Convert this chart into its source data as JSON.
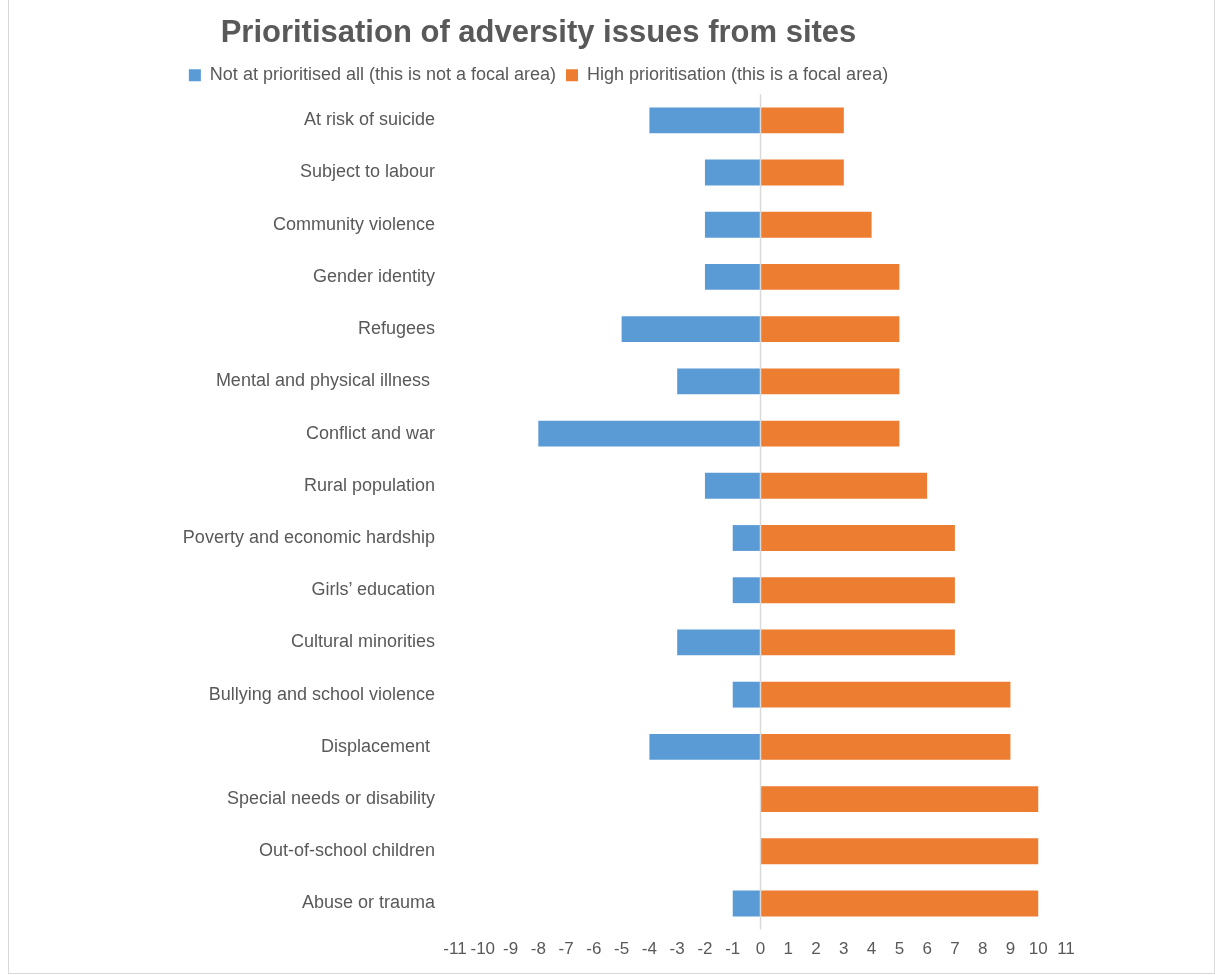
{
  "chart_data": {
    "type": "bar",
    "orientation": "horizontal",
    "stacked": true,
    "title": "Prioritisation of adversity issues from sites",
    "categories": [
      "At risk of suicide",
      "Subject to labour",
      "Community violence",
      "Gender identity",
      "Refugees",
      "Mental and physical illness ",
      "Conflict and war",
      "Rural population",
      "Poverty and economic hardship",
      "Girls’ education",
      "Cultural minorities",
      "Bullying and school violence",
      "Displacement ",
      "Special needs or disability",
      "Out-of-school children",
      "Abuse or trauma"
    ],
    "series": [
      {
        "name": "Not at prioritised all (this is not a focal area)",
        "color": "#5b9bd5",
        "values": [
          -4,
          -2,
          -2,
          -2,
          -5,
          -3,
          -8,
          -2,
          -1,
          -1,
          -3,
          -1,
          -4,
          0,
          0,
          -1
        ]
      },
      {
        "name": "High prioritisation (this is a focal area)",
        "color": "#ed7d31",
        "values": [
          3,
          3,
          4,
          5,
          5,
          5,
          5,
          6,
          7,
          7,
          7,
          9,
          9,
          10,
          10,
          10
        ]
      }
    ],
    "xlim": [
      -11,
      11
    ],
    "xticks": [
      -11,
      -10,
      -9,
      -8,
      -7,
      -6,
      -5,
      -4,
      -3,
      -2,
      -1,
      0,
      1,
      2,
      3,
      4,
      5,
      6,
      7,
      8,
      9,
      10,
      11
    ],
    "ref_lines": [
      {
        "axis": "x",
        "value": 0,
        "color": "#d9d9d9"
      }
    ],
    "grid": false,
    "legend": "top"
  }
}
